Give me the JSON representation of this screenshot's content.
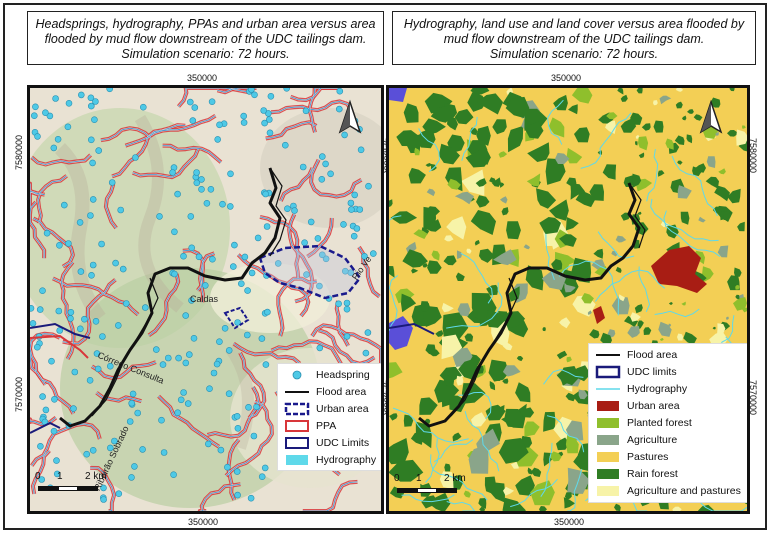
{
  "left_panel": {
    "title_lines": [
      "Headsprings, hydrography, PPAs and urban area versus area",
      "flooded by mud flow downstream of  the UDC tailings dam.",
      "Simulation scenario: 72 hours."
    ],
    "coord_top": "350000",
    "coord_bottom": "350000",
    "coord_left_upper": "7580000",
    "coord_left_lower": "7570000",
    "coord_right_upper": "7580000",
    "coord_right_lower": "7570000",
    "place_labels": {
      "caldas": "Caldas",
      "corrego": "Córrego Consulta",
      "ribeirao": "Ribeirão Sobrado",
      "rio": "Rio Ve"
    },
    "scale": {
      "zero": "0",
      "one": "1",
      "two": "2 km"
    },
    "legend": [
      {
        "label": "Headspring",
        "symbol": "headspring"
      },
      {
        "label": "Flood area",
        "symbol": "flood-line"
      },
      {
        "label": "Urban area",
        "symbol": "urban-dashed"
      },
      {
        "label": "PPA",
        "symbol": "ppa-box"
      },
      {
        "label": "UDC Limits",
        "symbol": "udc-box"
      },
      {
        "label": "Hydrography",
        "symbol": "hydro-fill"
      }
    ]
  },
  "right_panel": {
    "title_lines": [
      "Hydrography, land use and land cover versus area flooded by",
      "mud flow downstream of the UDC tailings dam.",
      "Simulation scenario: 72 hours."
    ],
    "coord_top": "350000",
    "coord_bottom": "350000",
    "coord_right_upper": "7580000",
    "coord_right_lower": "7570000",
    "scale": {
      "zero": "0",
      "one": "1",
      "two": "2 km"
    },
    "legend": [
      {
        "label": "Flood area",
        "symbol": "flood-line"
      },
      {
        "label": "UDC limits",
        "symbol": "udc-box"
      },
      {
        "label": "Hydrography",
        "symbol": "hydro-line"
      },
      {
        "label": "Urban area",
        "symbol": "urban-fill"
      },
      {
        "label": "Planted forest",
        "symbol": "planted-fill"
      },
      {
        "label": "Agriculture",
        "symbol": "agri-fill"
      },
      {
        "label": "Pastures",
        "symbol": "pasture-fill"
      },
      {
        "label": "Rain  forest",
        "symbol": "rain-fill"
      },
      {
        "label": "Agriculture and pastures",
        "symbol": "agripast-fill"
      }
    ]
  },
  "colors": {
    "flood": "#111111",
    "headspring": "#4ec9e6",
    "ppa": "#d8363a",
    "urban_dashed": "#1a1a8c",
    "udc": "#1a1a7a",
    "hydro": "#5fd9ea",
    "urban_area": "#a81d14",
    "planted_forest": "#8fbf2c",
    "agriculture": "#8aa58a",
    "pastures": "#f3cf55",
    "rain_forest": "#2f7d24",
    "agri_pastures": "#f7f3a8"
  }
}
